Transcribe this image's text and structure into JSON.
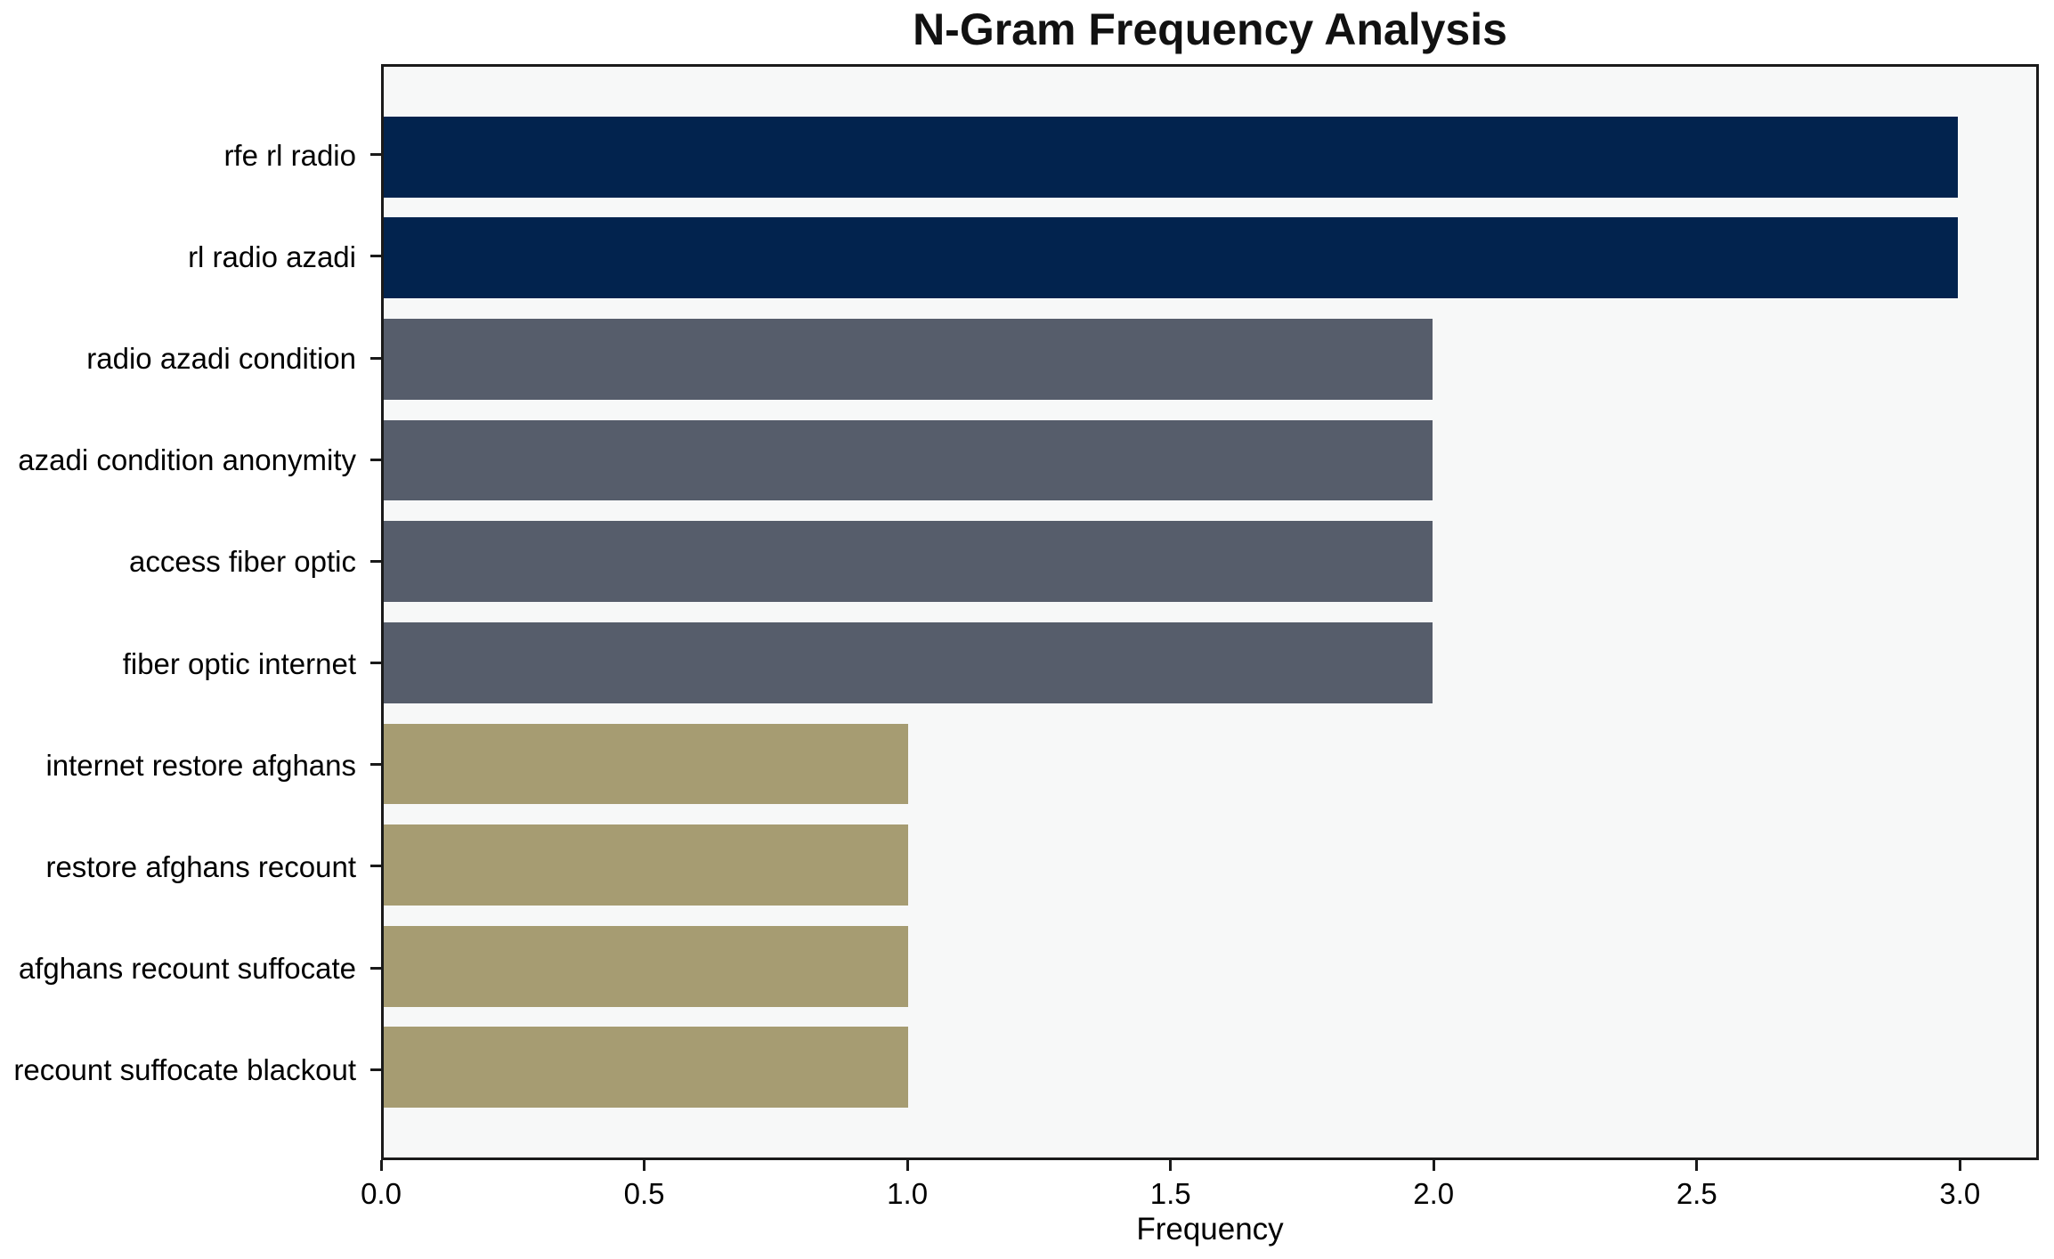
{
  "chart_data": {
    "type": "bar",
    "orientation": "horizontal",
    "title": "N-Gram Frequency Analysis",
    "xlabel": "Frequency",
    "ylabel": "",
    "categories": [
      "rfe rl radio",
      "rl radio azadi",
      "radio azadi condition",
      "azadi condition anonymity",
      "access fiber optic",
      "fiber optic internet",
      "internet restore afghans",
      "restore afghans recount",
      "afghans recount suffocate",
      "recount suffocate blackout"
    ],
    "values": [
      3,
      3,
      2,
      2,
      2,
      2,
      1,
      1,
      1,
      1
    ],
    "bar_colors": [
      "#02234E",
      "#02234E",
      "#565D6B",
      "#565D6B",
      "#565D6B",
      "#565D6B",
      "#A69C72",
      "#A69C72",
      "#A69C72",
      "#A69C72"
    ],
    "xlim": [
      0,
      3.15
    ],
    "x_ticks": [
      0.0,
      0.5,
      1.0,
      1.5,
      2.0,
      2.5,
      3.0
    ],
    "x_tick_labels": [
      "0.0",
      "0.5",
      "1.0",
      "1.5",
      "2.0",
      "2.5",
      "3.0"
    ],
    "grid": false,
    "legend": null,
    "bar_height_units": 0.8,
    "colors": {
      "plot_bg": "#F7F8F8",
      "figure_bg": "#FFFFFF",
      "spine": "#1A1A1A",
      "text": "#000000"
    }
  }
}
